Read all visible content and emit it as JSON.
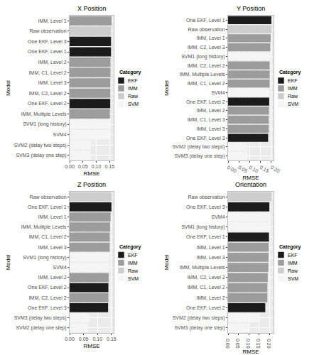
{
  "chart_data": [
    {
      "type": "bar",
      "orientation": "horizontal",
      "title": "X Position",
      "x_label": "RMSE",
      "y_label": "Model",
      "legend_title": "Category",
      "legend": "right",
      "grid": true,
      "categories": [
        "IMM, Level 1",
        "Raw observation",
        "One EKF, Level 3",
        "One EKF, Level 1",
        "IMM, Level 2",
        "IMM, C1, Level 2",
        "IMM, Level 3",
        "IMM, C2, Level 2",
        "One EKF, Level 2",
        "IMM, Multiple Levels",
        "SVM1 (long history)",
        "SVM4",
        "SVM2 (delay two steps)",
        "SVM3 (delay one step)"
      ],
      "series": [
        {
          "name": "EKF",
          "color": "#1c1c1c",
          "values": [
            null,
            null,
            0.155,
            0.155,
            null,
            null,
            null,
            null,
            0.152,
            null,
            null,
            null,
            null,
            null
          ]
        },
        {
          "name": "IMM",
          "color": "#9c9c9c",
          "values": [
            0.157,
            null,
            null,
            null,
            0.153,
            0.153,
            0.152,
            0.152,
            null,
            0.151,
            null,
            null,
            null,
            null
          ]
        },
        {
          "name": "Raw",
          "color": "#cdcdcd",
          "values": [
            null,
            0.155,
            null,
            null,
            null,
            null,
            null,
            null,
            null,
            null,
            null,
            null,
            null,
            null
          ]
        },
        {
          "name": "SVM",
          "color": "#f5f5f5",
          "values": [
            null,
            null,
            null,
            null,
            null,
            null,
            null,
            null,
            null,
            null,
            0.15,
            0.15,
            0.08,
            0.08
          ]
        }
      ],
      "xlim": [
        0,
        0.165
      ],
      "xticks": [
        {
          "value": 0,
          "label": "0.00"
        },
        0.05,
        {
          "value": 0.1,
          "label": "0.10"
        },
        0.15
      ]
    },
    {
      "type": "bar",
      "orientation": "horizontal",
      "title": "Y Position",
      "x_label": "RMSE",
      "y_label": "Model",
      "legend_title": "Category",
      "legend": "right",
      "grid": true,
      "categories": [
        "One EKF, Level 1",
        "Raw observation",
        "IMM, Level 1",
        "IMM, C2, Level 3",
        "SVM1 (long history)",
        "IMM, C2, Level 2",
        "IMM, Multiple Levels",
        "IMM, C1, Level 2",
        "SVM4",
        "One EKF, Level 2",
        "IMM, Level 2",
        "IMM, C1, Level 3",
        "IMM, Level 3",
        "One EKF, Level 3",
        "SVM2 (delay two steps)",
        "SVM3 (delay one step)"
      ],
      "series": [
        {
          "name": "EKF",
          "color": "#1c1c1c",
          "values": [
            0.2,
            null,
            null,
            null,
            null,
            null,
            null,
            null,
            null,
            0.19,
            null,
            null,
            null,
            0.185,
            null,
            null
          ]
        },
        {
          "name": "IMM",
          "color": "#9c9c9c",
          "values": [
            null,
            null,
            0.197,
            0.195,
            null,
            0.192,
            0.192,
            0.192,
            null,
            null,
            0.189,
            0.188,
            0.188,
            null,
            null,
            null
          ]
        },
        {
          "name": "Raw",
          "color": "#cdcdcd",
          "values": [
            null,
            0.2,
            null,
            null,
            null,
            null,
            null,
            null,
            null,
            null,
            null,
            null,
            null,
            null,
            null,
            null
          ]
        },
        {
          "name": "SVM",
          "color": "#f5f5f5",
          "values": [
            null,
            null,
            null,
            null,
            0.193,
            null,
            null,
            null,
            0.19,
            null,
            null,
            null,
            null,
            null,
            0.09,
            0.09
          ]
        }
      ],
      "xlim": [
        0,
        0.21
      ],
      "xticks": [
        {
          "value": 0,
          "label": "0.00"
        },
        0.05,
        {
          "value": 0.1,
          "label": "0.10"
        },
        0.15,
        {
          "value": 0.2,
          "label": "0.20"
        }
      ]
    },
    {
      "type": "bar",
      "orientation": "horizontal",
      "title": "Z Position",
      "x_label": "RMSE",
      "y_label": "Model",
      "legend_title": "Category",
      "legend": "right",
      "grid": true,
      "categories": [
        "Raw observation",
        "One EKF, Level 1",
        "IMM, Level 1",
        "IMM, Multiple Levels",
        "IMM, C1, Level 2",
        "IMM, Level 3",
        "SVM1 (long history)",
        "SVM4",
        "IMM, Level 2",
        "One EKF, Level 2",
        "IMM, C2, Level 2",
        "One EKF, Level 3",
        "SVM3 (delay two steps)",
        "SVM2 (delay one step)"
      ],
      "series": [
        {
          "name": "EKF",
          "color": "#1c1c1c",
          "values": [
            null,
            0.15,
            null,
            null,
            null,
            null,
            null,
            null,
            null,
            0.139,
            null,
            0.138,
            null,
            null
          ]
        },
        {
          "name": "IMM",
          "color": "#9c9c9c",
          "values": [
            null,
            null,
            0.147,
            0.145,
            0.144,
            0.144,
            null,
            null,
            0.14,
            null,
            0.139,
            null,
            null,
            null
          ]
        },
        {
          "name": "Raw",
          "color": "#cdcdcd",
          "values": [
            0.15,
            null,
            null,
            null,
            null,
            null,
            null,
            null,
            null,
            null,
            null,
            null,
            null,
            null
          ]
        },
        {
          "name": "SVM",
          "color": "#f5f5f5",
          "values": [
            null,
            null,
            null,
            null,
            null,
            null,
            0.143,
            0.142,
            null,
            null,
            null,
            null,
            0.072,
            0.065
          ]
        }
      ],
      "xlim": [
        0,
        0.158
      ],
      "xticks": [
        {
          "value": 0,
          "label": "0.00"
        },
        0.05,
        {
          "value": 0.1,
          "label": "0.10"
        },
        0.15
      ]
    },
    {
      "type": "bar",
      "orientation": "horizontal",
      "title": "Orientation",
      "x_label": "RMSE",
      "y_label": "Model",
      "legend_title": "Category",
      "legend": "right",
      "grid": true,
      "categories": [
        "Raw observation",
        "One EKF, Level 3",
        "SVM4",
        "SVM1 (long history)",
        "One EKF, Level 1",
        "IMM, Level 1",
        "IMM, Level 3",
        "IMM, Multiple Levels",
        "IMM, C2, Level 2",
        "IMM, C1, Level 2",
        "IMM, Level 2",
        "One EKF, Level 2",
        "SVM2 (delay two steps)",
        "SVM3 (delay one step)"
      ],
      "series": [
        {
          "name": "EKF",
          "color": "#1c1c1c",
          "values": [
            null,
            0.2,
            null,
            null,
            0.198,
            null,
            null,
            null,
            null,
            null,
            null,
            0.18,
            null,
            null
          ]
        },
        {
          "name": "IMM",
          "color": "#9c9c9c",
          "values": [
            null,
            null,
            null,
            null,
            null,
            0.197,
            0.196,
            0.195,
            0.192,
            0.19,
            0.19,
            null,
            null,
            null
          ]
        },
        {
          "name": "Raw",
          "color": "#cdcdcd",
          "values": [
            0.21,
            null,
            null,
            null,
            null,
            null,
            null,
            null,
            null,
            null,
            null,
            null,
            null,
            null
          ]
        },
        {
          "name": "SVM",
          "color": "#f5f5f5",
          "values": [
            null,
            null,
            0.2,
            0.198,
            null,
            null,
            null,
            null,
            null,
            null,
            null,
            null,
            0.155,
            0.1
          ]
        }
      ],
      "xlim": [
        0,
        0.22
      ],
      "xticks": [
        {
          "value": 0,
          "label": "0.00"
        },
        0.05,
        {
          "value": 0.1,
          "label": "0.10"
        },
        0.15,
        {
          "value": 0.2,
          "label": "0.20"
        }
      ]
    }
  ]
}
